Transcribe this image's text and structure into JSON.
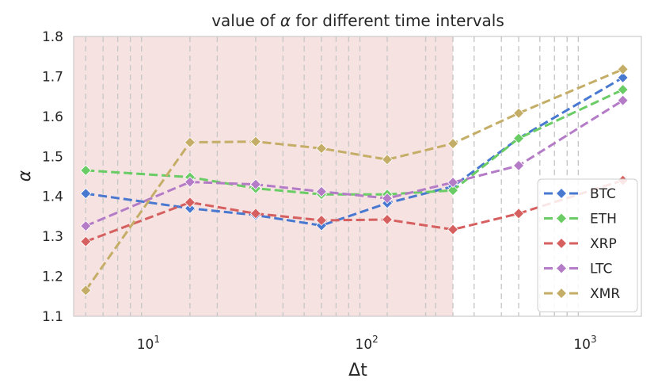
{
  "chart_data": {
    "type": "line",
    "title_prefix": "value of ",
    "title_symbol": "α",
    "title_suffix": " for different time intervals",
    "xlabel": "Δt",
    "ylabel": "α",
    "xscale": "log",
    "xlim": [
      4.4,
      1750
    ],
    "ylim": [
      1.1,
      1.8
    ],
    "x_ticks": [
      {
        "value": 10,
        "base": "10",
        "exp": "1"
      },
      {
        "value": 100,
        "base": "10",
        "exp": "2"
      },
      {
        "value": 1000,
        "base": "10",
        "exp": "3"
      }
    ],
    "y_ticks": [
      "1.1",
      "1.2",
      "1.3",
      "1.4",
      "1.5",
      "1.6",
      "1.7",
      "1.8"
    ],
    "grid": false,
    "shaded_region": {
      "x_start": 4.4,
      "x_end": 240,
      "color": "#f7e2e2"
    },
    "vlines": [
      5,
      6,
      7,
      8,
      9,
      15,
      20,
      30,
      40,
      50,
      60,
      70,
      80,
      90,
      120,
      180,
      200,
      240,
      300,
      400,
      480,
      600,
      700,
      800,
      900
    ],
    "x": [
      5,
      15,
      30,
      60,
      120,
      240,
      480,
      1440
    ],
    "series": [
      {
        "name": "BTC",
        "color": "#4878d0",
        "values": [
          1.407,
          1.37,
          1.353,
          1.327,
          1.383,
          1.425,
          1.545,
          1.697
        ]
      },
      {
        "name": "ETH",
        "color": "#6acc64",
        "values": [
          1.465,
          1.448,
          1.42,
          1.405,
          1.405,
          1.415,
          1.545,
          1.667
        ]
      },
      {
        "name": "XRP",
        "color": "#d65f5f",
        "values": [
          1.287,
          1.385,
          1.357,
          1.34,
          1.342,
          1.317,
          1.357,
          1.44
        ]
      },
      {
        "name": "LTC",
        "color": "#b47cc7",
        "values": [
          1.326,
          1.436,
          1.43,
          1.412,
          1.395,
          1.435,
          1.477,
          1.64
        ]
      },
      {
        "name": "XMR",
        "color": "#c4ad66",
        "values": [
          1.165,
          1.535,
          1.537,
          1.52,
          1.492,
          1.532,
          1.608,
          1.718
        ]
      }
    ],
    "legend": "bottom-right"
  }
}
